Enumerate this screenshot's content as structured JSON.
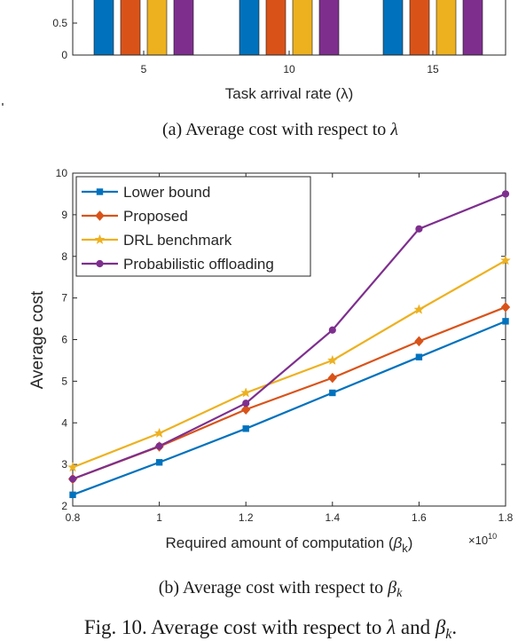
{
  "colors": {
    "lower_bound": "#0072BD",
    "proposed": "#D95319",
    "drl": "#EDB120",
    "probabilistic": "#7E2F8E",
    "axis": "#262626",
    "grid": "#e6e6e6"
  },
  "top_chart": {
    "caption": "(a) Average cost with respect to λ",
    "xlabel": "Task arrival rate (λ)",
    "y_ticks": [
      "0.5",
      "0"
    ],
    "categories": [
      "5",
      "10",
      "15"
    ]
  },
  "bottom_chart": {
    "caption": "(b) Average cost with respect to βk",
    "xlabel": "Required amount of computation (βk)",
    "ylabel": "Average cost",
    "x_exponent": "×10¹⁰",
    "legend": [
      "Lower bound",
      "Proposed",
      "DRL benchmark",
      "Probabilistic offloading"
    ]
  },
  "figure_caption": "Fig. 10. Average cost with respect to λ and βk.",
  "chart_data": [
    {
      "type": "bar",
      "categories": [
        "5",
        "10",
        "15"
      ],
      "series": [
        {
          "name": "Lower bound",
          "values": [
            null,
            null,
            null
          ]
        },
        {
          "name": "Proposed",
          "values": [
            null,
            null,
            null
          ]
        },
        {
          "name": "DRL benchmark",
          "values": [
            null,
            null,
            null
          ]
        },
        {
          "name": "Probabilistic offloading",
          "values": [
            null,
            null,
            null
          ]
        }
      ],
      "xlabel": "Task arrival rate (λ)",
      "visible_ylim": [
        0,
        0.6
      ],
      "y_ticks": [
        0,
        0.5
      ]
    },
    {
      "type": "line",
      "x": [
        0.8,
        1.0,
        1.2,
        1.4,
        1.6,
        1.8
      ],
      "x_multiplier": "×10¹⁰",
      "series": [
        {
          "name": "Lower bound",
          "marker": "square",
          "values": [
            2.27,
            3.05,
            3.86,
            4.72,
            5.58,
            6.44
          ]
        },
        {
          "name": "Proposed",
          "marker": "diamond",
          "values": [
            2.65,
            3.43,
            4.32,
            5.08,
            5.96,
            6.78
          ]
        },
        {
          "name": "DRL benchmark",
          "marker": "star",
          "values": [
            2.93,
            3.75,
            4.72,
            5.5,
            6.72,
            7.9
          ]
        },
        {
          "name": "Probabilistic offloading",
          "marker": "circle",
          "values": [
            2.65,
            3.44,
            4.47,
            6.23,
            8.66,
            9.5
          ]
        }
      ],
      "xlim": [
        0.8,
        1.8
      ],
      "ylim": [
        2,
        10
      ],
      "x_ticks": [
        0.8,
        1.0,
        1.2,
        1.4,
        1.6,
        1.8
      ],
      "y_ticks": [
        2,
        3,
        4,
        5,
        6,
        7,
        8,
        9,
        10
      ],
      "xlabel": "Required amount of computation (βk)",
      "ylabel": "Average cost",
      "legend_position": "top-left",
      "grid": false
    }
  ]
}
